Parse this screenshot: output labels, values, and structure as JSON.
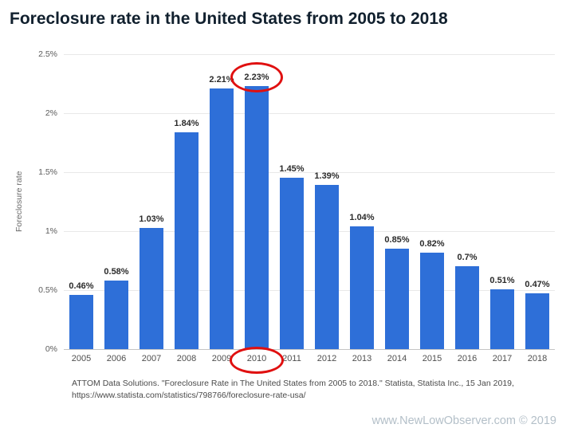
{
  "title": "Foreclosure rate in the United States from 2005 to 2018",
  "chart_data": {
    "type": "bar",
    "title": "Foreclosure rate in the United States from 2005 to 2018",
    "categories": [
      "2005",
      "2006",
      "2007",
      "2008",
      "2009",
      "2010",
      "2011",
      "2012",
      "2013",
      "2014",
      "2015",
      "2016",
      "2017",
      "2018"
    ],
    "values": [
      0.46,
      0.58,
      1.03,
      1.84,
      2.21,
      2.23,
      1.45,
      1.39,
      1.04,
      0.85,
      0.82,
      0.7,
      0.51,
      0.47
    ],
    "value_labels": [
      "0.46%",
      "0.58%",
      "1.03%",
      "1.84%",
      "2.21%",
      "2.23%",
      "1.45%",
      "1.39%",
      "1.04%",
      "0.85%",
      "0.82%",
      "0.7%",
      "0.51%",
      "0.47%"
    ],
    "xlabel": "",
    "ylabel": "Foreclosure rate",
    "ylim": [
      0,
      2.5
    ],
    "yticks": [
      {
        "label": "0%",
        "value": 0
      },
      {
        "label": "0.5%",
        "value": 0.5
      },
      {
        "label": "1%",
        "value": 1
      },
      {
        "label": "1.5%",
        "value": 1.5
      },
      {
        "label": "2%",
        "value": 2
      },
      {
        "label": "2.5%",
        "value": 2.5
      }
    ],
    "grid": true,
    "legend": "none",
    "bar_color": "#2e6fd8",
    "annotations": [
      {
        "type": "circle",
        "target": "value",
        "category": "2010",
        "color": "#e01010"
      },
      {
        "type": "circle",
        "target": "category",
        "category": "2010",
        "color": "#e01010"
      }
    ]
  },
  "footer": {
    "source_line1": "ATTOM Data Solutions. \"Foreclosure Rate in The United States from 2005 to 2018.\" Statista, Statista Inc., 15 Jan 2019,",
    "source_line2": "https://www.statista.com/statistics/798766/foreclosure-rate-usa/",
    "watermark": "www.NewLowObserver.com © 2019"
  }
}
